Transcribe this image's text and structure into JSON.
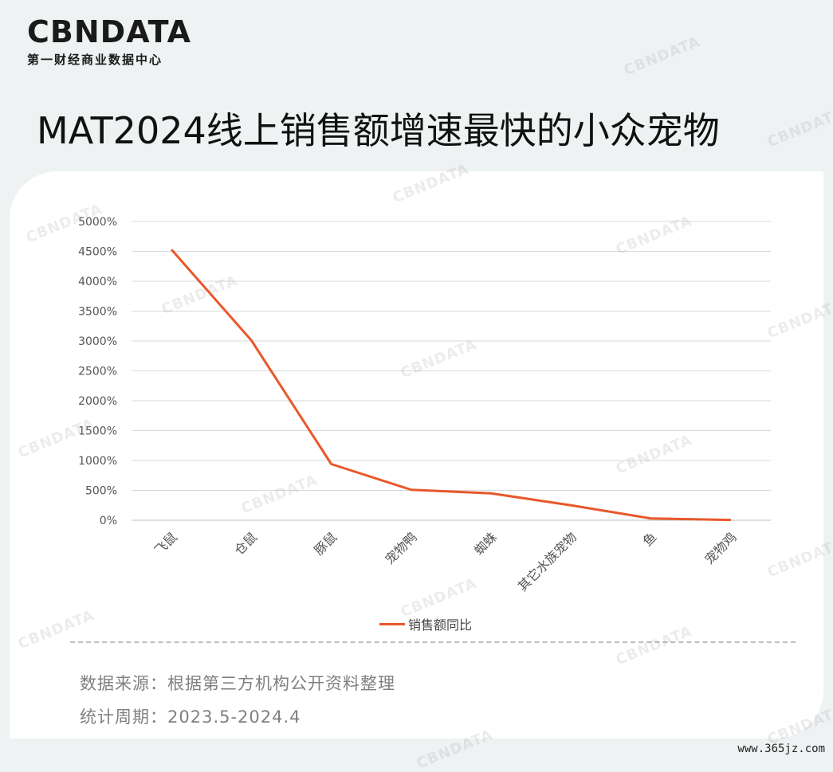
{
  "brand": {
    "logo": "CBNDATA",
    "subtitle": "第一财经商业数据中心"
  },
  "headline": "MAT2024线上销售额增速最快的小众宠物",
  "chart_data": {
    "type": "line",
    "categories": [
      "飞鼠",
      "仓鼠",
      "豚鼠",
      "宠物鸭",
      "蜘蛛",
      "其它水族宠物",
      "鱼",
      "宠物鸡"
    ],
    "series": [
      {
        "name": "销售额同比",
        "values": [
          4530,
          3010,
          940,
          510,
          450,
          250,
          30,
          5
        ],
        "color": "#e8582a"
      }
    ],
    "ylim": [
      0,
      5000
    ],
    "yticks": [
      "0%",
      "500%",
      "1000%",
      "1500%",
      "2000%",
      "2500%",
      "3000%",
      "3500%",
      "4000%",
      "4500%",
      "5000%"
    ],
    "grid": true,
    "legend": "bottom"
  },
  "footer": {
    "source": "数据来源：根据第三方机构公开资料整理",
    "period": "统计周期：2023.5-2024.4"
  },
  "watermark": "CBNDATA",
  "site": "www.365jz.com"
}
